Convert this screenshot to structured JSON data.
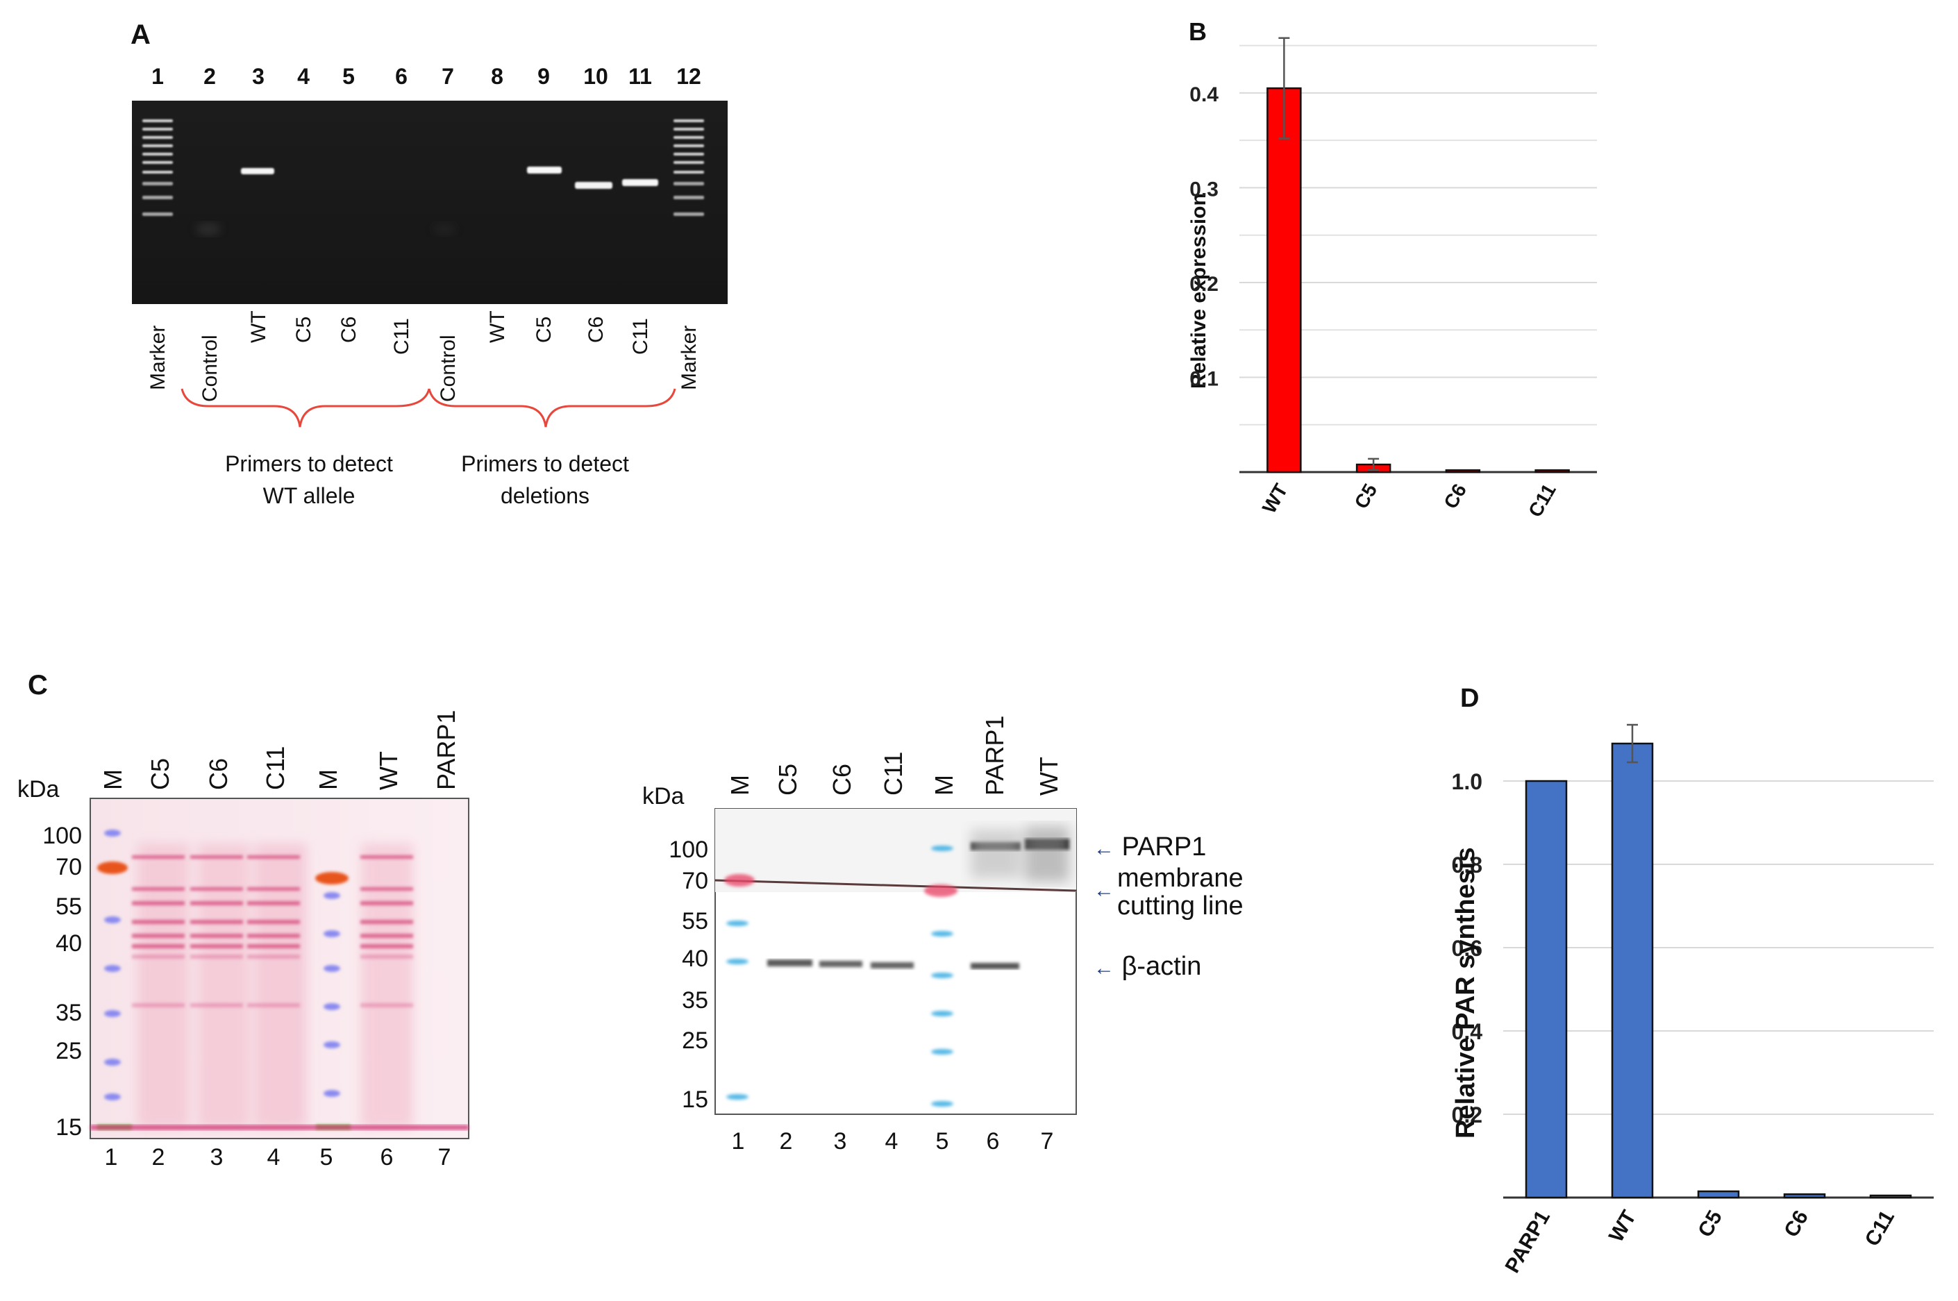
{
  "panelA": {
    "letter": "A",
    "lane_numbers": [
      "1",
      "2",
      "3",
      "4",
      "5",
      "6",
      "7",
      "8",
      "9",
      "10",
      "11",
      "12"
    ],
    "lane_labels": [
      "Marker",
      "Control",
      "WT",
      "C5",
      "C6",
      "C11",
      "Control",
      "WT",
      "C5",
      "C6",
      "C11",
      "Marker"
    ],
    "primer_wt": "Primers to detect\nWT allele",
    "primer_del": "Primers to detect\ndeletions",
    "bracket_color": "#e8473c"
  },
  "panelB": {
    "letter": "B",
    "ylabel": "Relative expression",
    "chart_data": {
      "type": "bar",
      "categories": [
        "WT",
        "C5",
        "C6",
        "C11"
      ],
      "values": [
        0.405,
        0.008,
        0.002,
        0.002
      ],
      "errors": [
        0.053,
        0.006,
        0.0,
        0.0
      ],
      "ylabel": "Relative expression",
      "yticks": [
        "0.1",
        "0.2",
        "0.3",
        "0.4"
      ],
      "ylim": [
        0,
        0.46
      ],
      "grid": true,
      "color": "#ff0000"
    }
  },
  "panelC": {
    "letter": "C",
    "left": {
      "kda": "kDa",
      "lane_labels": [
        "M",
        "C5",
        "C6",
        "C11",
        "M",
        "WT",
        "PARP1"
      ],
      "lane_numbers": [
        "1",
        "2",
        "3",
        "4",
        "5",
        "6",
        "7"
      ],
      "mw": [
        "100",
        "70",
        "55",
        "40",
        "35",
        "25",
        "15"
      ]
    },
    "right": {
      "kda": "kDa",
      "lane_labels": [
        "M",
        "C5",
        "C6",
        "C11",
        "M",
        "PARP1",
        "WT"
      ],
      "lane_numbers": [
        "1",
        "2",
        "3",
        "4",
        "5",
        "6",
        "7"
      ],
      "mw": [
        "100",
        "70",
        "55",
        "40",
        "35",
        "25",
        "15"
      ],
      "annot_parp1": "PARP1",
      "annot_cut": "membrane\ncutting line",
      "annot_actin": "β-actin"
    }
  },
  "panelD": {
    "letter": "D",
    "chart_data": {
      "type": "bar",
      "categories": [
        "PARP1",
        "WT",
        "C5",
        "C6",
        "C11"
      ],
      "values": [
        1.0,
        1.09,
        0.015,
        0.008,
        0.005
      ],
      "errors": [
        0.0,
        0.045,
        0.0,
        0.0,
        0.0
      ],
      "ylabel": "Relative PAR synthesis",
      "yticks": [
        "0.2",
        "0.4",
        "0.6",
        "0.8",
        "1.0"
      ],
      "ylim": [
        0,
        1.2
      ],
      "grid": true,
      "color": "#4472c4"
    }
  }
}
